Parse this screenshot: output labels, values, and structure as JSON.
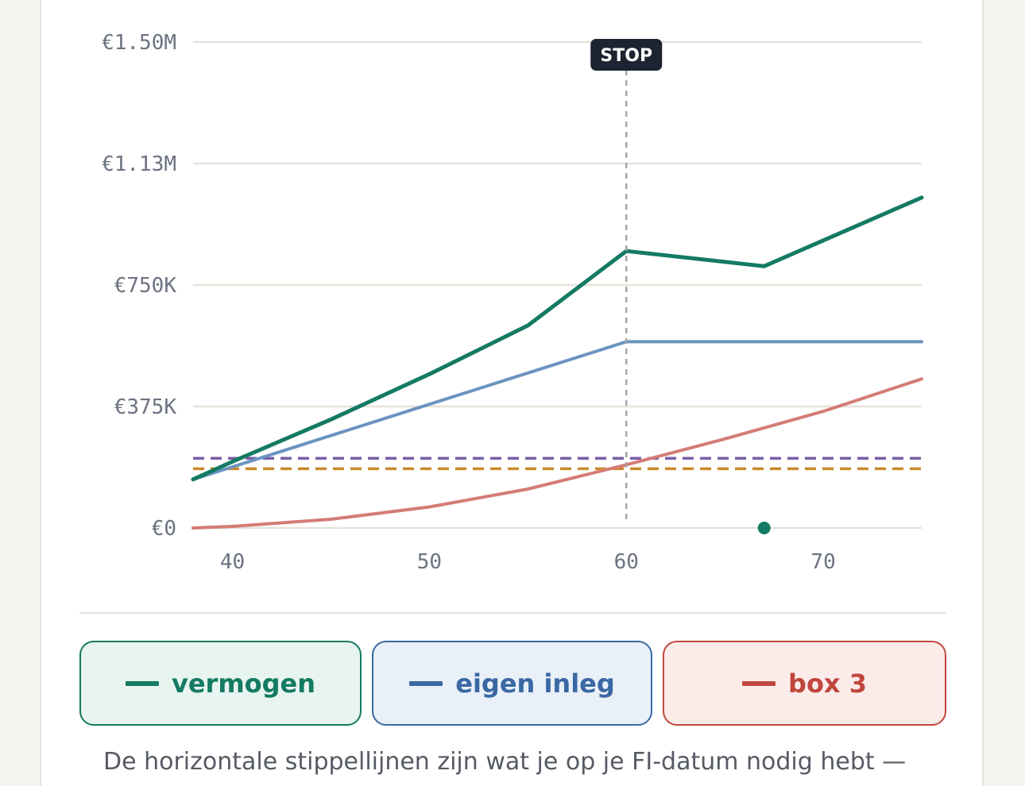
{
  "chart_data": {
    "type": "line",
    "x_ticks": [
      40,
      50,
      60,
      70
    ],
    "y_ticks": [
      0,
      375000,
      750000,
      1125000,
      1500000
    ],
    "y_tick_labels": [
      "€0",
      "€375K",
      "€750K",
      "€1.13M",
      "€1.50M"
    ],
    "xlim": [
      38,
      75
    ],
    "ylim": [
      0,
      1500000
    ],
    "grid": true,
    "series": [
      {
        "name": "vermogen",
        "color": "#147a63",
        "points": [
          [
            38,
            150000
          ],
          [
            40,
            205000
          ],
          [
            45,
            335000
          ],
          [
            50,
            475000
          ],
          [
            55,
            625000
          ],
          [
            60,
            855000
          ],
          [
            67,
            808000
          ],
          [
            75,
            1020000
          ]
        ]
      },
      {
        "name": "eigen inleg",
        "color": "#6c93c0",
        "points": [
          [
            38,
            150000
          ],
          [
            60,
            575000
          ],
          [
            75,
            575000
          ]
        ]
      },
      {
        "name": "box 3",
        "color": "#d47c76",
        "points": [
          [
            38,
            0
          ],
          [
            40,
            5000
          ],
          [
            45,
            27000
          ],
          [
            50,
            65000
          ],
          [
            55,
            120000
          ],
          [
            60,
            195000
          ],
          [
            65,
            275000
          ],
          [
            70,
            360000
          ],
          [
            75,
            460000
          ]
        ]
      }
    ],
    "reference_lines": [
      {
        "y": 215000,
        "color": "#7a5fa6"
      },
      {
        "y": 183000,
        "color": "#c98a2b"
      }
    ],
    "stop_marker": {
      "x": 60,
      "label": "STOP"
    },
    "point_marker": {
      "x": 67,
      "y": 0,
      "color": "#147a63"
    }
  },
  "legend": {
    "vermogen": "vermogen",
    "eigen_inleg": "eigen inleg",
    "box3": "box 3"
  },
  "footnote": "De horizontale stippellijnen zijn wat je op je FI-datum nodig hebt —"
}
